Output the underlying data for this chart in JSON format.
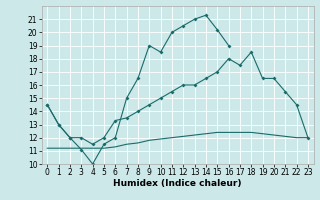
{
  "xlabel": "Humidex (Indice chaleur)",
  "background_color": "#cce8e8",
  "grid_color": "#ffffff",
  "line_color": "#1a6b6b",
  "xlim": [
    -0.5,
    23.5
  ],
  "ylim": [
    10,
    22
  ],
  "yticks": [
    10,
    11,
    12,
    13,
    14,
    15,
    16,
    17,
    18,
    19,
    20,
    21
  ],
  "xticks": [
    0,
    1,
    2,
    3,
    4,
    5,
    6,
    7,
    8,
    9,
    10,
    11,
    12,
    13,
    14,
    15,
    16,
    17,
    18,
    19,
    20,
    21,
    22,
    23
  ],
  "series1_x": [
    0,
    1,
    2,
    3,
    4,
    5,
    6,
    7,
    8,
    9,
    10,
    11,
    12,
    13,
    14,
    15,
    16
  ],
  "series1_y": [
    14.5,
    13.0,
    12.0,
    11.1,
    10.0,
    11.5,
    12.0,
    15.0,
    16.5,
    19.0,
    18.5,
    20.0,
    20.5,
    21.0,
    21.3,
    20.2,
    19.0
  ],
  "series2_x": [
    0,
    1,
    2,
    3,
    4,
    5,
    6,
    7,
    8,
    9,
    10,
    11,
    12,
    13,
    14,
    15,
    16,
    17,
    18,
    19,
    20,
    21,
    22,
    23
  ],
  "series2_y": [
    14.5,
    13.0,
    12.0,
    12.0,
    11.5,
    12.0,
    13.3,
    13.5,
    14.0,
    14.5,
    15.0,
    15.5,
    16.0,
    16.0,
    16.5,
    17.0,
    18.0,
    17.5,
    18.5,
    16.5,
    16.5,
    15.5,
    14.5,
    12.0
  ],
  "series3_x": [
    0,
    1,
    2,
    3,
    4,
    5,
    6,
    7,
    8,
    9,
    10,
    11,
    12,
    13,
    14,
    15,
    16,
    17,
    18,
    19,
    20,
    21,
    22,
    23
  ],
  "series3_y": [
    11.2,
    11.2,
    11.2,
    11.2,
    11.2,
    11.2,
    11.3,
    11.5,
    11.6,
    11.8,
    11.9,
    12.0,
    12.1,
    12.2,
    12.3,
    12.4,
    12.4,
    12.4,
    12.4,
    12.3,
    12.2,
    12.1,
    12.0,
    12.0
  ]
}
